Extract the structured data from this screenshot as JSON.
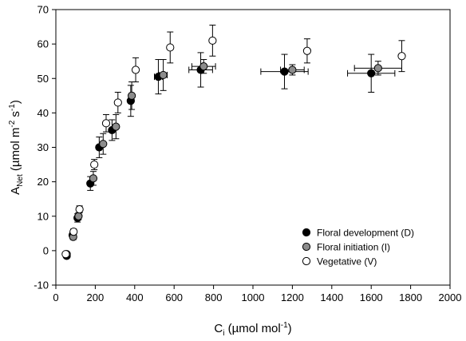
{
  "chart_data": {
    "type": "scatter",
    "title": "",
    "xlabel": {
      "main": "C",
      "sub": "i",
      "unit_pre": " (µmol mol",
      "unit_sup": "-1",
      "unit_post": ")"
    },
    "ylabel": {
      "main": "A",
      "sub": "Net",
      "unit_pre": " (µmol m",
      "sup1": "-2",
      "mid": " s",
      "sup2": "-1",
      "unit_post": ")"
    },
    "xlim": [
      0,
      2000
    ],
    "ylim": [
      -10,
      70
    ],
    "xticks": [
      0,
      200,
      400,
      600,
      800,
      1000,
      1200,
      1400,
      1600,
      1800,
      2000
    ],
    "yticks": [
      -10,
      0,
      10,
      20,
      30,
      40,
      50,
      60,
      70
    ],
    "grid": false,
    "legend_position": "bottom-right",
    "series": [
      {
        "name": "Floral development (D)",
        "color": "#000000",
        "points": [
          {
            "x": 55,
            "y": -1.5,
            "yerr": 0.5,
            "xerr": 0
          },
          {
            "x": 85,
            "y": 4.5,
            "yerr": 0.8,
            "xerr": 0
          },
          {
            "x": 110,
            "y": 9.5,
            "yerr": 1.2,
            "xerr": 0
          },
          {
            "x": 175,
            "y": 19.5,
            "yerr": 2.0,
            "xerr": 0
          },
          {
            "x": 220,
            "y": 30.0,
            "yerr": 3.0,
            "xerr": 0
          },
          {
            "x": 285,
            "y": 35.0,
            "yerr": 3.0,
            "xerr": 0
          },
          {
            "x": 380,
            "y": 43.5,
            "yerr": 4.5,
            "xerr": 10
          },
          {
            "x": 520,
            "y": 50.5,
            "yerr": 5.0,
            "xerr": 20
          },
          {
            "x": 735,
            "y": 52.5,
            "yerr": 5.0,
            "xerr": 60
          },
          {
            "x": 1160,
            "y": 52.0,
            "yerr": 5.0,
            "xerr": 120
          },
          {
            "x": 1600,
            "y": 51.5,
            "yerr": 5.5,
            "xerr": 120
          }
        ]
      },
      {
        "name": "Floral initiation (I)",
        "color": "#8c8c8c",
        "points": [
          {
            "x": 55,
            "y": -1.0,
            "yerr": 0.5,
            "xerr": 0
          },
          {
            "x": 88,
            "y": 4.0,
            "yerr": 0.8,
            "xerr": 0
          },
          {
            "x": 115,
            "y": 10.0,
            "yerr": 1.0,
            "xerr": 0
          },
          {
            "x": 190,
            "y": 21.0,
            "yerr": 2.0,
            "xerr": 0
          },
          {
            "x": 240,
            "y": 31.0,
            "yerr": 3.0,
            "xerr": 0
          },
          {
            "x": 305,
            "y": 36.0,
            "yerr": 3.5,
            "xerr": 0
          },
          {
            "x": 385,
            "y": 45.0,
            "yerr": 4.0,
            "xerr": 10
          },
          {
            "x": 545,
            "y": 51.0,
            "yerr": 4.5,
            "xerr": 20
          },
          {
            "x": 750,
            "y": 53.5,
            "yerr": 2.0,
            "xerr": 60
          },
          {
            "x": 1200,
            "y": 52.5,
            "yerr": 1.5,
            "xerr": 60
          },
          {
            "x": 1635,
            "y": 53.0,
            "yerr": 2.0,
            "xerr": 120
          }
        ]
      },
      {
        "name": "Vegetative (V)",
        "color": "#ffffff",
        "points": [
          {
            "x": 50,
            "y": -1.0,
            "yerr": 0.5,
            "xerr": 0
          },
          {
            "x": 90,
            "y": 5.5,
            "yerr": 0.8,
            "xerr": 0
          },
          {
            "x": 120,
            "y": 12.0,
            "yerr": 1.0,
            "xerr": 0
          },
          {
            "x": 195,
            "y": 25.0,
            "yerr": 1.5,
            "xerr": 0
          },
          {
            "x": 255,
            "y": 37.0,
            "yerr": 2.5,
            "xerr": 0
          },
          {
            "x": 315,
            "y": 43.0,
            "yerr": 3.0,
            "xerr": 0
          },
          {
            "x": 405,
            "y": 52.5,
            "yerr": 3.5,
            "xerr": 0
          },
          {
            "x": 580,
            "y": 59.0,
            "yerr": 4.5,
            "xerr": 0
          },
          {
            "x": 795,
            "y": 61.0,
            "yerr": 4.5,
            "xerr": 0
          },
          {
            "x": 1275,
            "y": 58.0,
            "yerr": 3.5,
            "xerr": 0
          },
          {
            "x": 1755,
            "y": 56.5,
            "yerr": 4.5,
            "xerr": 0
          }
        ]
      }
    ]
  }
}
